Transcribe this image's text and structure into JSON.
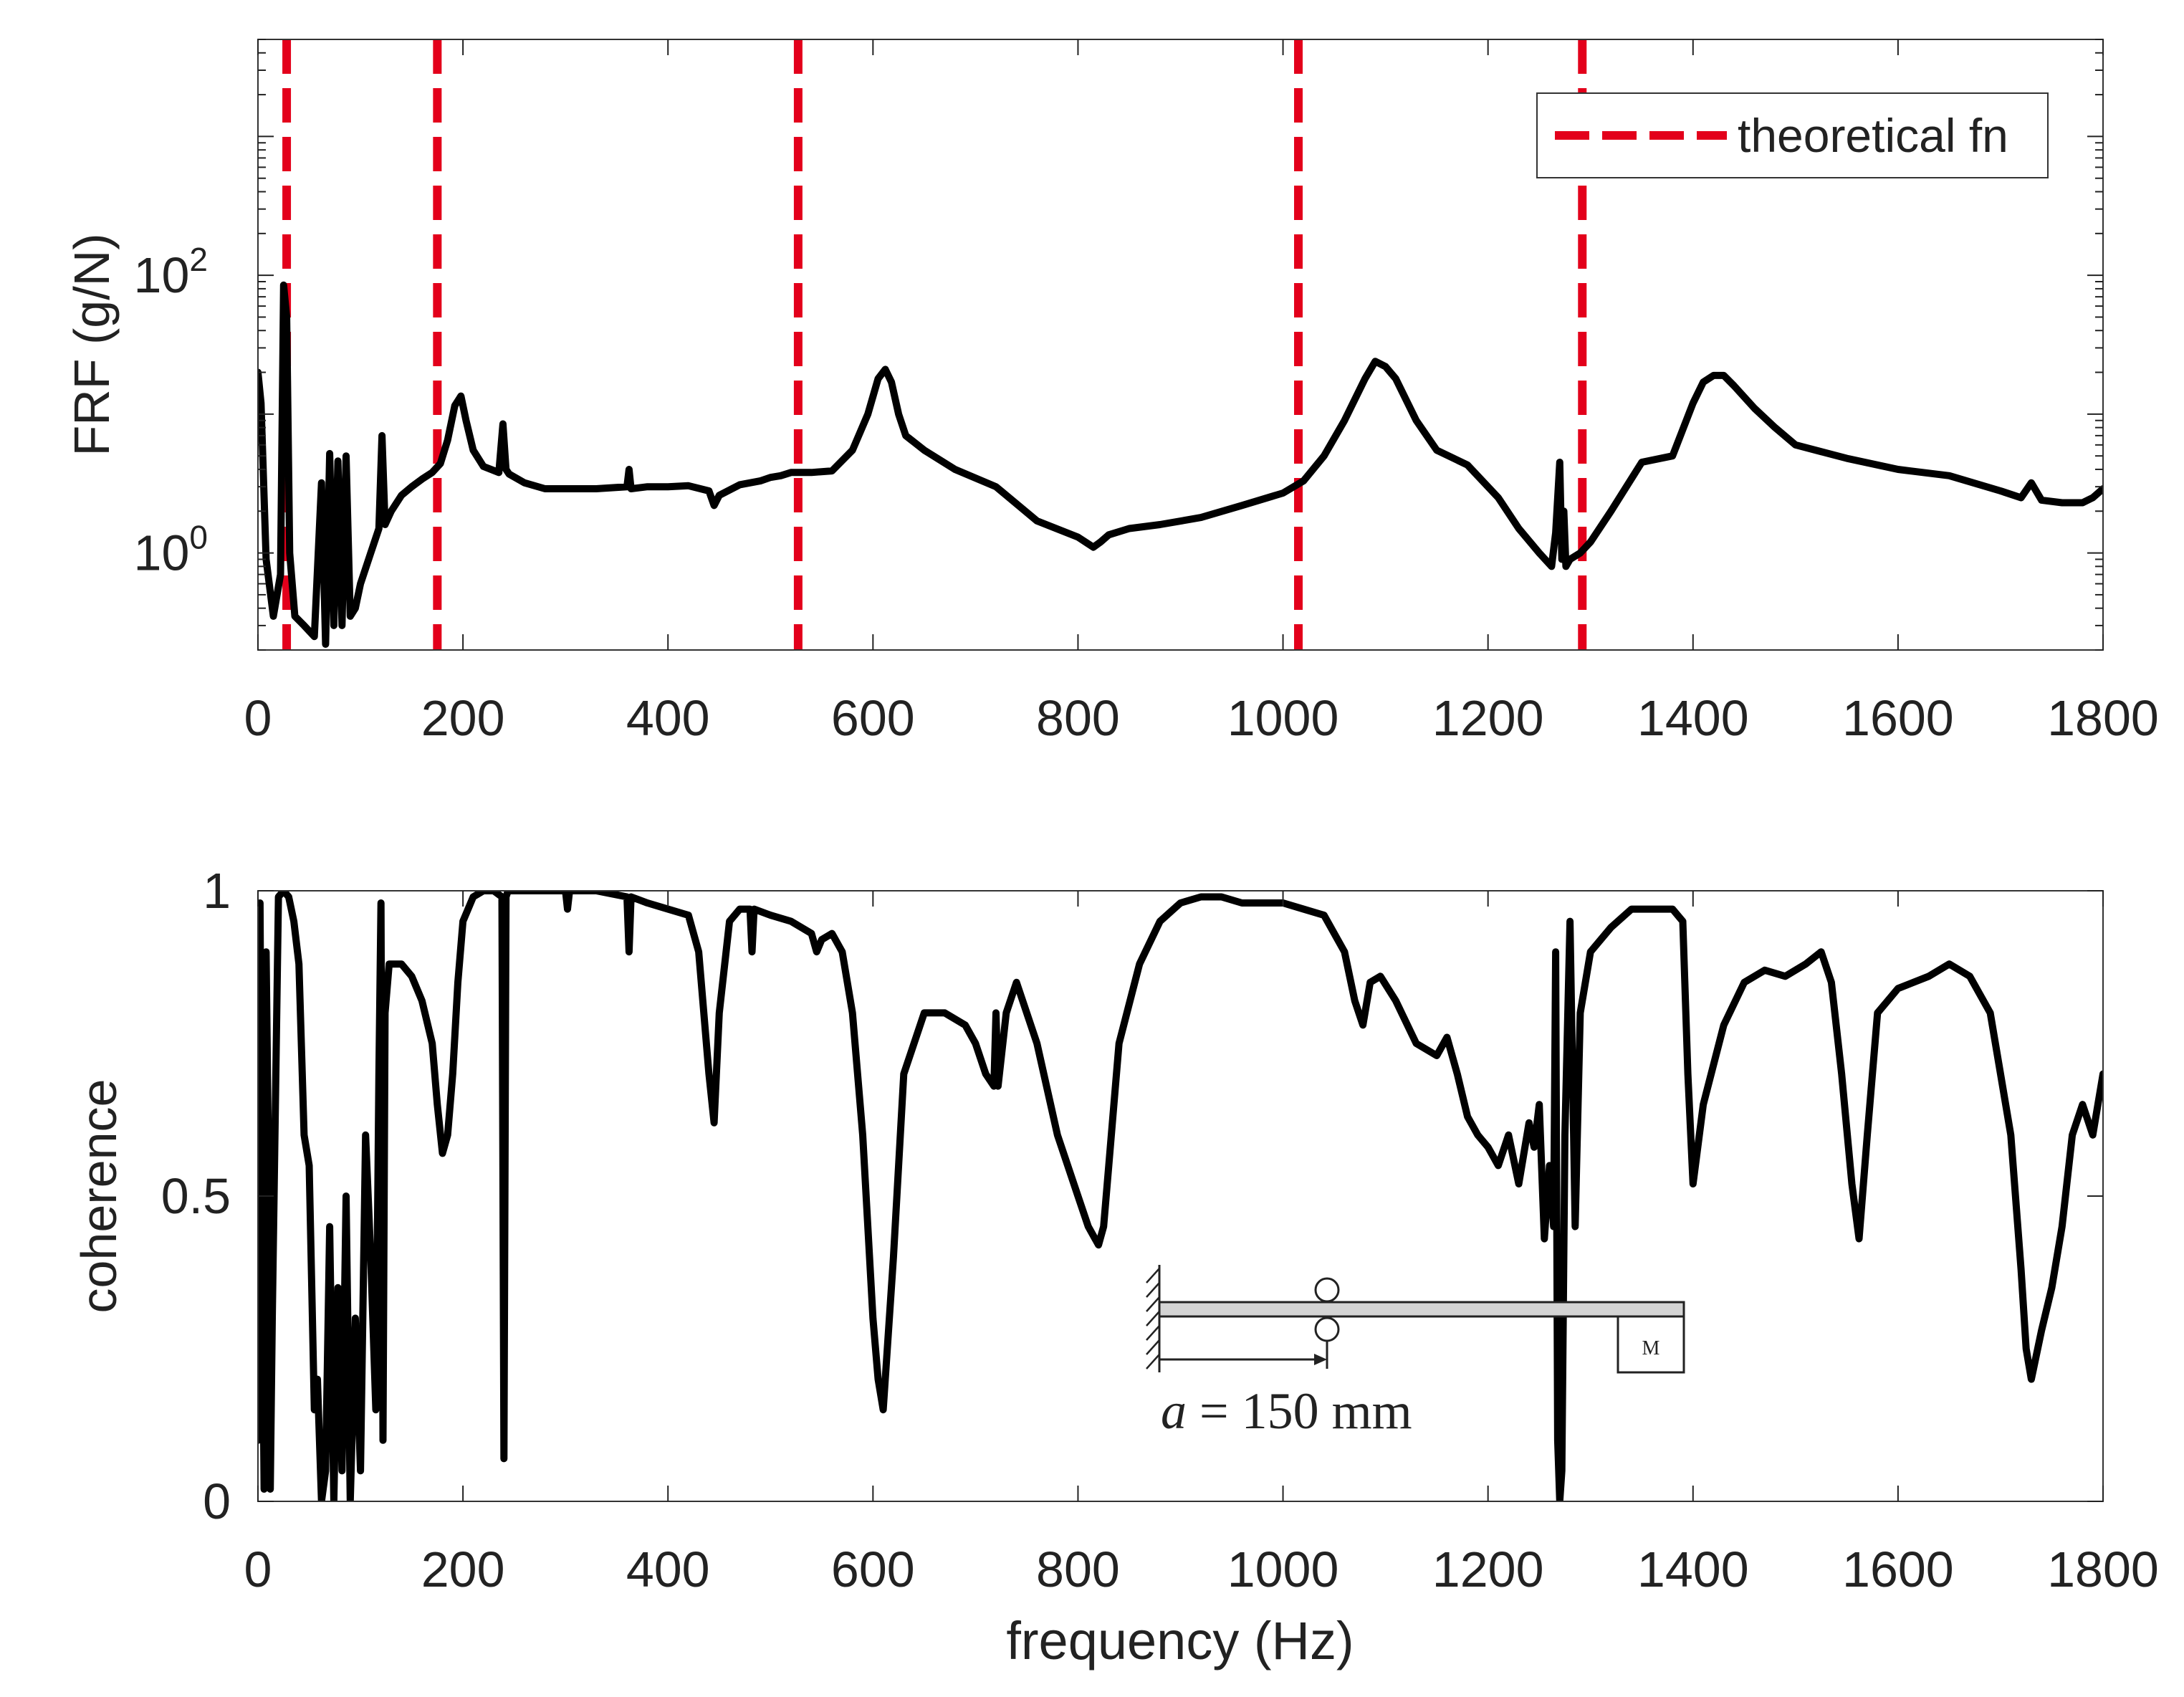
{
  "colors": {
    "trace": "#000000",
    "theoretical": "#e3001b",
    "axis": "#222222"
  },
  "chart_data": [
    {
      "type": "line",
      "id": "frf",
      "title": "",
      "xlabel": "",
      "ylabel": "FRF (g/N)",
      "yscale": "log",
      "xlim": [
        0,
        1800
      ],
      "ylim": [
        0.2,
        5000
      ],
      "xticks": [
        0,
        200,
        400,
        600,
        800,
        1000,
        1200,
        1400,
        1600,
        1800
      ],
      "xtick_labels": [
        "0",
        "200",
        "400",
        "600",
        "800",
        "1000",
        "1200",
        "1400",
        "1600",
        "1800"
      ],
      "yticks": [
        {
          "value": 1,
          "base": "10",
          "exp": "0"
        },
        {
          "value": 100,
          "base": "10",
          "exp": "2"
        }
      ],
      "legend": {
        "label": "theoretical fn",
        "placement": "top-right"
      },
      "theoretical_fn": [
        28,
        175,
        527,
        1015,
        1292
      ],
      "series": [
        {
          "name": "FRF",
          "x": [
            0,
            3,
            8,
            15,
            22,
            25,
            28,
            31,
            36,
            45,
            55,
            62,
            66,
            70,
            74,
            78,
            82,
            86,
            90,
            95,
            100,
            110,
            118,
            121,
            124,
            130,
            140,
            150,
            160,
            170,
            178,
            185,
            192,
            198,
            203,
            210,
            220,
            235,
            239,
            242,
            245,
            260,
            280,
            300,
            330,
            360,
            362,
            364,
            380,
            400,
            420,
            440,
            445,
            450,
            470,
            490,
            500,
            510,
            520,
            540,
            560,
            580,
            595,
            605,
            612,
            618,
            625,
            632,
            650,
            680,
            720,
            760,
            800,
            815,
            822,
            830,
            850,
            880,
            920,
            960,
            1000,
            1020,
            1040,
            1060,
            1080,
            1090,
            1100,
            1110,
            1130,
            1150,
            1180,
            1210,
            1230,
            1250,
            1262,
            1266,
            1270,
            1272,
            1274,
            1276,
            1280,
            1290,
            1300,
            1320,
            1350,
            1380,
            1400,
            1410,
            1420,
            1430,
            1440,
            1460,
            1480,
            1500,
            1550,
            1600,
            1650,
            1700,
            1720,
            1730,
            1740,
            1760,
            1780,
            1790,
            1800
          ],
          "values": [
            20,
            12,
            0.9,
            0.35,
            0.7,
            85,
            50,
            1.0,
            0.35,
            0.3,
            0.25,
            3.2,
            0.22,
            5.2,
            0.3,
            4.6,
            0.3,
            5.0,
            0.35,
            0.4,
            0.6,
            1.0,
            1.5,
            7.0,
            1.6,
            2.0,
            2.6,
            3.0,
            3.4,
            3.8,
            4.4,
            6.5,
            11.5,
            13.5,
            9.0,
            5.5,
            4.2,
            3.8,
            8.5,
            4.0,
            3.7,
            3.2,
            2.9,
            2.9,
            2.9,
            3.0,
            4.0,
            2.9,
            3.0,
            3.0,
            3.05,
            2.8,
            2.2,
            2.6,
            3.1,
            3.3,
            3.5,
            3.6,
            3.8,
            3.8,
            3.9,
            5.5,
            10,
            18,
            21,
            17,
            10,
            7.0,
            5.5,
            4.0,
            3.0,
            1.7,
            1.3,
            1.1,
            1.2,
            1.35,
            1.5,
            1.6,
            1.8,
            2.2,
            2.7,
            3.3,
            5.0,
            9.0,
            18,
            24,
            22,
            18,
            9.0,
            5.5,
            4.3,
            2.5,
            1.5,
            1.0,
            0.8,
            1.4,
            4.5,
            0.9,
            2.0,
            0.8,
            0.9,
            1.0,
            1.2,
            2.0,
            4.5,
            5.0,
            12,
            17,
            19,
            19,
            16,
            11,
            8.0,
            6.0,
            4.8,
            4.0,
            3.6,
            2.8,
            2.5,
            3.2,
            2.4,
            2.3,
            2.3,
            2.5,
            2.9
          ]
        }
      ]
    },
    {
      "type": "line",
      "id": "coherence",
      "title": "",
      "xlabel": "frequency (Hz)",
      "ylabel": "coherence",
      "yscale": "linear",
      "xlim": [
        0,
        1800
      ],
      "ylim": [
        0,
        1
      ],
      "xticks": [
        0,
        200,
        400,
        600,
        800,
        1000,
        1200,
        1400,
        1600,
        1800
      ],
      "xtick_labels": [
        "0",
        "200",
        "400",
        "600",
        "800",
        "1000",
        "1200",
        "1400",
        "1600",
        "1800"
      ],
      "yticks": [
        0,
        0.5,
        1
      ],
      "ytick_labels": [
        "0",
        "0.5",
        "1"
      ],
      "series": [
        {
          "name": "coherence",
          "x": [
            0,
            2,
            4,
            6,
            8,
            10,
            12,
            14,
            20,
            25,
            30,
            35,
            40,
            45,
            50,
            55,
            58,
            62,
            66,
            70,
            74,
            78,
            82,
            86,
            90,
            95,
            100,
            105,
            110,
            115,
            118,
            120,
            122,
            124,
            128,
            140,
            150,
            160,
            170,
            175,
            180,
            185,
            190,
            195,
            200,
            210,
            220,
            230,
            238,
            240,
            242,
            244,
            250,
            260,
            280,
            300,
            302,
            304,
            330,
            360,
            362,
            364,
            380,
            400,
            420,
            430,
            440,
            445,
            450,
            460,
            470,
            480,
            482,
            484,
            500,
            520,
            540,
            545,
            550,
            560,
            570,
            580,
            590,
            600,
            605,
            610,
            620,
            630,
            650,
            670,
            690,
            700,
            710,
            718,
            720,
            722,
            730,
            740,
            760,
            780,
            800,
            810,
            820,
            825,
            830,
            840,
            860,
            880,
            900,
            920,
            940,
            960,
            980,
            1000,
            1020,
            1040,
            1060,
            1070,
            1078,
            1085,
            1095,
            1110,
            1130,
            1150,
            1160,
            1170,
            1180,
            1190,
            1200,
            1210,
            1220,
            1230,
            1240,
            1245,
            1250,
            1255,
            1260,
            1264,
            1266,
            1268,
            1270,
            1272,
            1275,
            1280,
            1285,
            1290,
            1300,
            1320,
            1340,
            1360,
            1380,
            1385,
            1390,
            1395,
            1400,
            1410,
            1430,
            1450,
            1470,
            1490,
            1510,
            1525,
            1535,
            1545,
            1555,
            1562,
            1570,
            1580,
            1600,
            1630,
            1650,
            1670,
            1690,
            1710,
            1720,
            1725,
            1730,
            1740,
            1750,
            1760,
            1770,
            1780,
            1790,
            1800
          ],
          "values": [
            0.1,
            0.98,
            0.4,
            0.02,
            0.9,
            0.6,
            0.02,
            0.3,
            0.99,
            1.0,
            0.99,
            0.95,
            0.88,
            0.6,
            0.55,
            0.15,
            0.2,
            0.0,
            0.05,
            0.45,
            0.0,
            0.35,
            0.05,
            0.5,
            0.0,
            0.3,
            0.05,
            0.6,
            0.4,
            0.15,
            0.7,
            0.98,
            0.1,
            0.8,
            0.88,
            0.88,
            0.86,
            0.82,
            0.75,
            0.65,
            0.57,
            0.6,
            0.7,
            0.85,
            0.95,
            0.99,
            1.0,
            1.0,
            0.99,
            0.07,
            0.99,
            1.0,
            1.0,
            1.0,
            1.0,
            1.0,
            0.97,
            1.0,
            1.0,
            0.99,
            0.9,
            0.99,
            0.98,
            0.97,
            0.96,
            0.9,
            0.7,
            0.62,
            0.8,
            0.95,
            0.97,
            0.97,
            0.9,
            0.97,
            0.96,
            0.95,
            0.93,
            0.9,
            0.92,
            0.93,
            0.9,
            0.8,
            0.6,
            0.3,
            0.2,
            0.15,
            0.4,
            0.7,
            0.8,
            0.8,
            0.78,
            0.75,
            0.7,
            0.68,
            0.8,
            0.68,
            0.8,
            0.85,
            0.75,
            0.6,
            0.5,
            0.45,
            0.42,
            0.45,
            0.55,
            0.75,
            0.88,
            0.95,
            0.98,
            0.99,
            0.99,
            0.98,
            0.98,
            0.98,
            0.97,
            0.96,
            0.9,
            0.82,
            0.78,
            0.85,
            0.86,
            0.82,
            0.75,
            0.73,
            0.76,
            0.7,
            0.63,
            0.6,
            0.58,
            0.55,
            0.6,
            0.52,
            0.62,
            0.58,
            0.65,
            0.43,
            0.55,
            0.45,
            0.9,
            0.1,
            0.0,
            0.05,
            0.6,
            0.95,
            0.45,
            0.8,
            0.9,
            0.94,
            0.97,
            0.97,
            0.97,
            0.96,
            0.95,
            0.7,
            0.52,
            0.65,
            0.78,
            0.85,
            0.87,
            0.86,
            0.88,
            0.9,
            0.85,
            0.7,
            0.52,
            0.43,
            0.6,
            0.8,
            0.84,
            0.86,
            0.88,
            0.86,
            0.8,
            0.6,
            0.38,
            0.25,
            0.2,
            0.28,
            0.35,
            0.45,
            0.6,
            0.65,
            0.6,
            0.7
          ]
        }
      ],
      "annotations": [
        {
          "type": "inset_diagram",
          "label_var": "a",
          "label_rest": " = 150 mm",
          "mass_label": "M"
        }
      ]
    }
  ]
}
